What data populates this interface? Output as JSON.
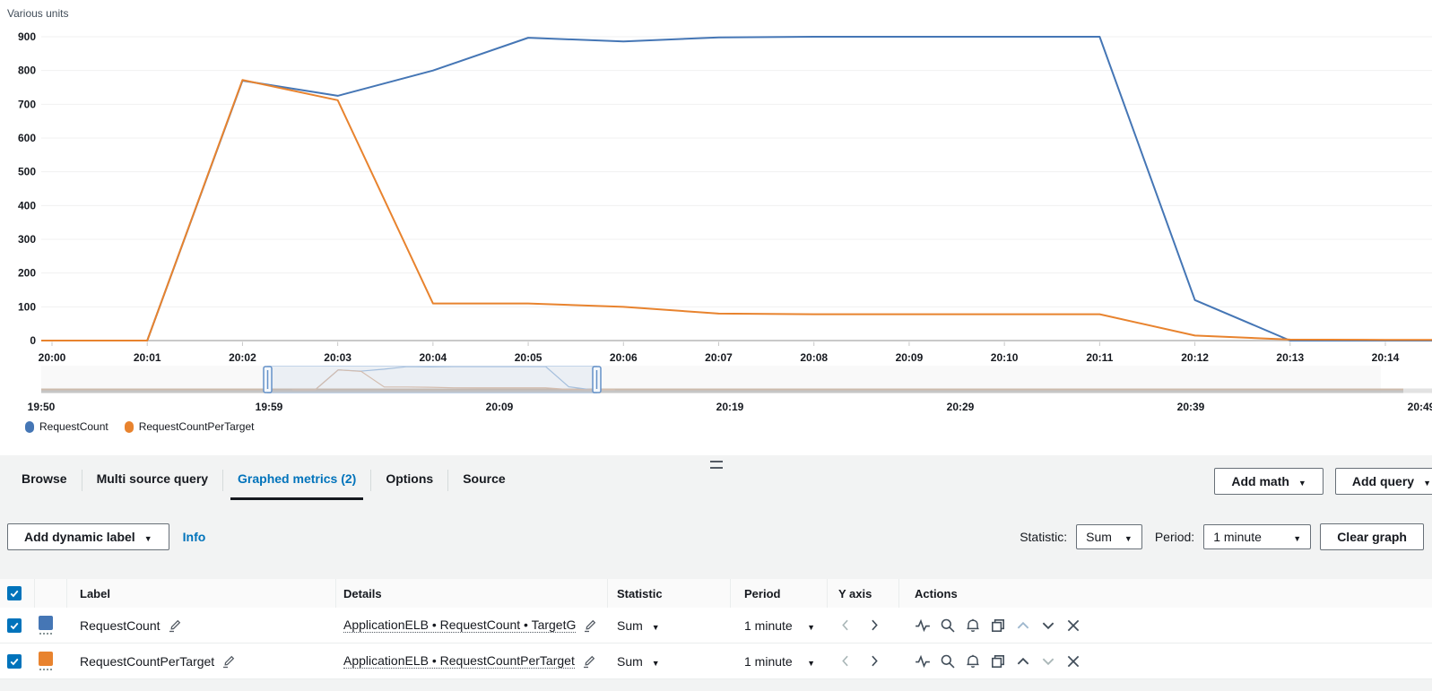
{
  "chart": {
    "units_label": "Various units",
    "legend": [
      {
        "label": "RequestCount",
        "color": "#4576b5"
      },
      {
        "label": "RequestCountPerTarget",
        "color": "#e8832e"
      }
    ]
  },
  "chart_data": {
    "type": "line",
    "title": "Various units",
    "x_labels": [
      "20:00",
      "20:01",
      "20:02",
      "20:03",
      "20:04",
      "20:05",
      "20:06",
      "20:07",
      "20:08",
      "20:09",
      "20:10",
      "20:11",
      "20:12",
      "20:13",
      "20:14"
    ],
    "ylim": [
      0,
      900
    ],
    "y_ticks": [
      0,
      100,
      200,
      300,
      400,
      500,
      600,
      700,
      800,
      900
    ],
    "grid": true,
    "legend_position": "bottom-left",
    "series": [
      {
        "name": "RequestCount",
        "color": "#4576b5",
        "values": [
          0,
          0,
          770,
          725,
          800,
          897,
          886,
          898,
          900,
          900,
          900,
          900,
          120,
          0,
          0
        ]
      },
      {
        "name": "RequestCountPerTarget",
        "color": "#e8832e",
        "values": [
          0,
          0,
          772,
          712,
          110,
          110,
          100,
          80,
          78,
          78,
          78,
          78,
          15,
          3,
          2
        ]
      }
    ],
    "brush": {
      "labels": [
        "19:50",
        "19:59",
        "20:09",
        "20:19",
        "20:29",
        "20:39",
        "20:49"
      ],
      "selection_start": "19:59",
      "selection_end": "20:13"
    }
  },
  "panel": {
    "tabs": [
      {
        "label": "Browse"
      },
      {
        "label": "Multi source query"
      },
      {
        "label": "Graphed metrics (2)"
      },
      {
        "label": "Options"
      },
      {
        "label": "Source"
      }
    ],
    "add_math_label": "Add math",
    "add_query_label": "Add query",
    "add_dynamic_label": "Add dynamic label",
    "info_label": "Info",
    "statistic_label": "Statistic:",
    "statistic_value": "Sum",
    "period_label": "Period:",
    "period_value": "1 minute",
    "clear_graph_label": "Clear graph"
  },
  "table": {
    "headers": {
      "label": "Label",
      "details": "Details",
      "statistic": "Statistic",
      "period": "Period",
      "y_axis": "Y axis",
      "actions": "Actions"
    },
    "rows": [
      {
        "label": "RequestCount",
        "details": "ApplicationELB • RequestCount • TargetG",
        "statistic": "Sum",
        "period": "1 minute",
        "color": "#4576b5"
      },
      {
        "label": "RequestCountPerTarget",
        "details": "ApplicationELB • RequestCountPerTarget",
        "statistic": "Sum",
        "period": "1 minute",
        "color": "#e8832e"
      }
    ]
  }
}
